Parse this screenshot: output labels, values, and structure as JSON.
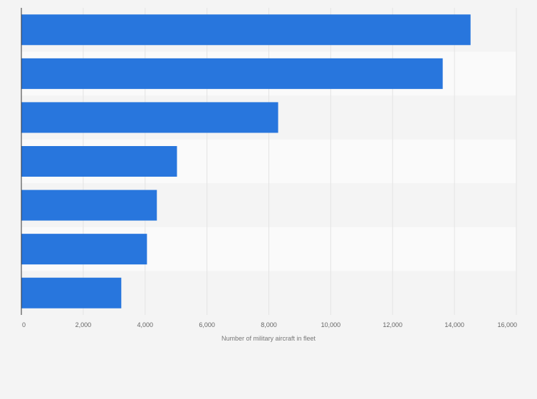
{
  "chart_data": {
    "type": "bar",
    "orientation": "horizontal",
    "categories": [
      "",
      "",
      "",
      "",
      "",
      "",
      ""
    ],
    "values": [
      14520,
      13620,
      8300,
      5030,
      4380,
      4060,
      3230
    ],
    "title": "",
    "xlabel": "Number of military aircraft in fleet",
    "ylabel": "",
    "xlim": [
      0,
      16000
    ],
    "x_ticks": [
      {
        "value": 0,
        "label": "0"
      },
      {
        "value": 2000,
        "label": "2,000"
      },
      {
        "value": 4000,
        "label": "4,000"
      },
      {
        "value": 6000,
        "label": "6,000"
      },
      {
        "value": 8000,
        "label": "8,000"
      },
      {
        "value": 10000,
        "label": "10,000"
      },
      {
        "value": 12000,
        "label": "12,000"
      },
      {
        "value": 14000,
        "label": "14,000"
      },
      {
        "value": 16000,
        "label": "16,000"
      }
    ],
    "grid": true,
    "legend": "none",
    "colors": {
      "bar": "#2876dd",
      "band_light": "#fafafa",
      "band_dark": "#f4f4f4",
      "grid": "#e3e3e3",
      "axis": "#333333",
      "tick_text": "#666666",
      "label_text": "#777777"
    }
  }
}
